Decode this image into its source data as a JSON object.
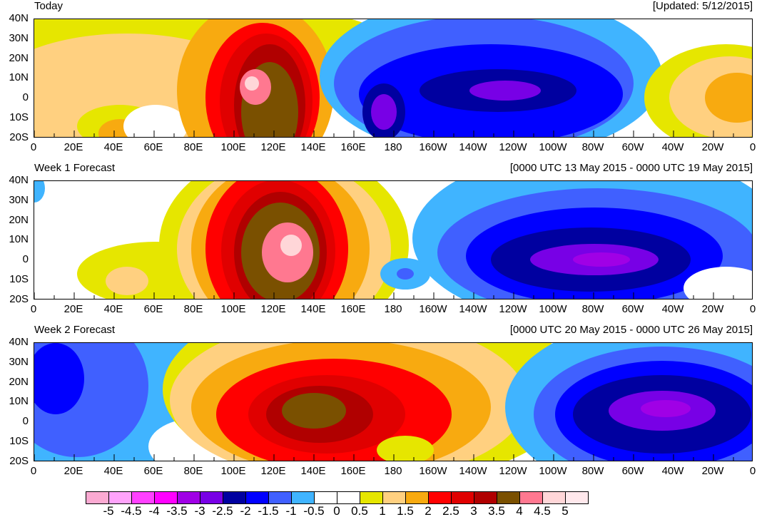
{
  "panels": [
    {
      "title": "Today",
      "date_label": "[Updated: 5/12/2015]"
    },
    {
      "title": "Week 1 Forecast",
      "date_label": "[0000 UTC 13 May 2015 - 0000 UTC 19 May 2015]"
    },
    {
      "title": "Week 2 Forecast",
      "date_label": "[0000 UTC 20 May 2015 - 0000 UTC 26 May 2015]"
    }
  ],
  "lat_labels": [
    "40N",
    "30N",
    "20N",
    "10N",
    "0",
    "10S",
    "20S"
  ],
  "lon_labels": [
    "0",
    "20E",
    "40E",
    "60E",
    "80E",
    "100E",
    "120E",
    "140E",
    "160E",
    "180",
    "160W",
    "140W",
    "120W",
    "100W",
    "80W",
    "60W",
    "40W",
    "20W",
    "0"
  ],
  "colorbar": {
    "labels": [
      "-5",
      "-4.5",
      "-4",
      "-3.5",
      "-3",
      "-2.5",
      "-2",
      "-1.5",
      "-1",
      "-0.5",
      "0",
      "0.5",
      "1",
      "1.5",
      "2",
      "2.5",
      "3",
      "3.5",
      "4",
      "4.5",
      "5"
    ],
    "colors": [
      "#fbaad2",
      "#ffa3fb",
      "#ff40ff",
      "#ff00ff",
      "#a000e6",
      "#7800e6",
      "#0000a0",
      "#0000ff",
      "#4060ff",
      "#40b4ff",
      "#ffffff",
      "#ffffff",
      "#e6e600",
      "#ffd080",
      "#f8aa10",
      "#ff0000",
      "#e00000",
      "#b00000",
      "#7a5000",
      "#ff7890",
      "#ffd6d8",
      "#ffe8ec"
    ]
  }
}
